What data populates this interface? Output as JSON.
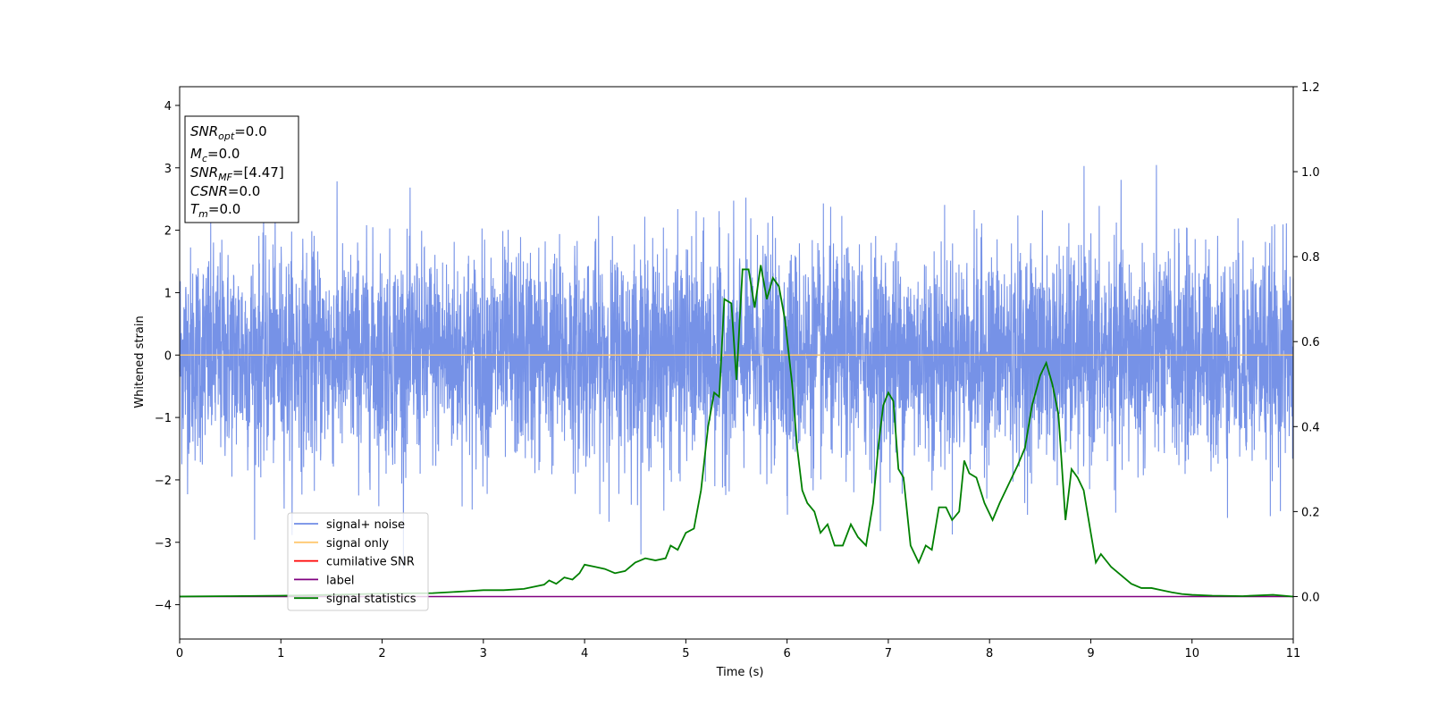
{
  "chart_data": {
    "type": "line",
    "xlabel": "Time (s)",
    "ylabel": "Whitened strain",
    "xlim": [
      0,
      11
    ],
    "ylim_left": [
      -4.55,
      4.3
    ],
    "ylim_right": [
      -0.1,
      1.2
    ],
    "x_ticks": [
      0,
      1,
      2,
      3,
      4,
      5,
      6,
      7,
      8,
      9,
      10,
      11
    ],
    "y_ticks_left": [
      -4,
      -3,
      -2,
      -1,
      0,
      1,
      2,
      3,
      4
    ],
    "y_ticks_right": [
      0.0,
      0.2,
      0.4,
      0.6,
      0.8,
      1.0,
      1.2
    ],
    "grid": false,
    "legend_position": "lower-left",
    "series": [
      {
        "name": "signal+ noise",
        "color": "#6f8ce6",
        "axis": "left",
        "kind": "noise",
        "sigma": 0.85,
        "duration": 11
      },
      {
        "name": "signal only",
        "color": "#ffc870",
        "axis": "left",
        "x": [
          0,
          11
        ],
        "values": [
          0,
          0
        ]
      },
      {
        "name": "cumilative SNR",
        "color": "#ff0000",
        "axis": "right",
        "x": [],
        "values": []
      },
      {
        "name": "label",
        "color": "#800080",
        "axis": "right",
        "x": [
          0,
          11
        ],
        "values": [
          0,
          0
        ]
      },
      {
        "name": "signal statistics",
        "color": "#008000",
        "axis": "right",
        "x": [
          0,
          0.5,
          1.0,
          1.5,
          2.0,
          2.5,
          2.8,
          3.0,
          3.2,
          3.4,
          3.6,
          3.65,
          3.72,
          3.8,
          3.88,
          3.95,
          4.0,
          4.1,
          4.2,
          4.3,
          4.4,
          4.5,
          4.55,
          4.6,
          4.7,
          4.8,
          4.85,
          4.92,
          5.0,
          5.08,
          5.15,
          5.22,
          5.28,
          5.33,
          5.38,
          5.45,
          5.5,
          5.56,
          5.62,
          5.68,
          5.74,
          5.8,
          5.86,
          5.92,
          5.98,
          6.05,
          6.1,
          6.15,
          6.2,
          6.27,
          6.33,
          6.4,
          6.47,
          6.55,
          6.63,
          6.7,
          6.78,
          6.85,
          6.9,
          6.95,
          7.0,
          7.05,
          7.1,
          7.15,
          7.22,
          7.3,
          7.37,
          7.43,
          7.5,
          7.57,
          7.63,
          7.7,
          7.75,
          7.8,
          7.87,
          7.95,
          8.03,
          8.1,
          8.2,
          8.28,
          8.35,
          8.42,
          8.5,
          8.56,
          8.62,
          8.68,
          8.75,
          8.81,
          8.87,
          8.93,
          9.0,
          9.05,
          9.1,
          9.2,
          9.3,
          9.4,
          9.5,
          9.6,
          9.7,
          9.8,
          9.9,
          10.0,
          10.2,
          10.5,
          10.8,
          11.0
        ],
        "values": [
          0.0,
          0.001,
          0.002,
          0.004,
          0.007,
          0.008,
          0.012,
          0.015,
          0.015,
          0.018,
          0.028,
          0.038,
          0.03,
          0.045,
          0.04,
          0.055,
          0.075,
          0.07,
          0.065,
          0.055,
          0.06,
          0.08,
          0.085,
          0.09,
          0.085,
          0.09,
          0.12,
          0.11,
          0.15,
          0.16,
          0.25,
          0.4,
          0.48,
          0.47,
          0.7,
          0.69,
          0.51,
          0.77,
          0.77,
          0.68,
          0.78,
          0.7,
          0.75,
          0.73,
          0.65,
          0.5,
          0.35,
          0.25,
          0.22,
          0.2,
          0.15,
          0.17,
          0.12,
          0.12,
          0.17,
          0.14,
          0.12,
          0.22,
          0.35,
          0.45,
          0.48,
          0.46,
          0.3,
          0.28,
          0.12,
          0.08,
          0.12,
          0.11,
          0.21,
          0.21,
          0.18,
          0.2,
          0.32,
          0.29,
          0.28,
          0.22,
          0.18,
          0.22,
          0.27,
          0.31,
          0.35,
          0.45,
          0.52,
          0.55,
          0.5,
          0.43,
          0.18,
          0.3,
          0.28,
          0.25,
          0.15,
          0.08,
          0.1,
          0.07,
          0.05,
          0.03,
          0.02,
          0.02,
          0.015,
          0.01,
          0.006,
          0.004,
          0.002,
          0.001,
          0.004,
          0.0
        ]
      }
    ],
    "annotation_box": {
      "lines": [
        {
          "main": "SNR",
          "sub": "opt",
          "rest": "=0.0"
        },
        {
          "main": "M",
          "sub": "c",
          "rest": "=0.0"
        },
        {
          "main": "SNR",
          "sub": "MF",
          "rest": "=[4.47]"
        },
        {
          "main": "CSNR",
          "sub": "",
          "rest": "=0.0"
        },
        {
          "main": "T",
          "sub": "m",
          "rest": "=0.0"
        }
      ]
    }
  }
}
